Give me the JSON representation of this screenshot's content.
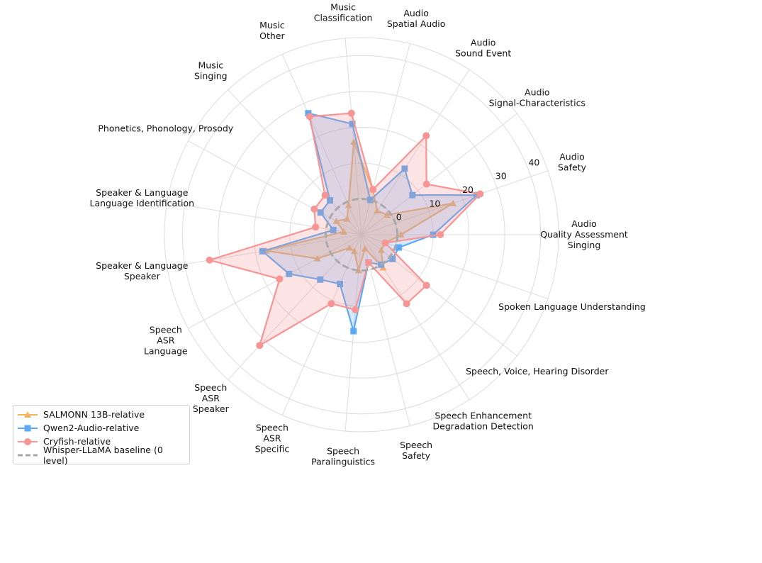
{
  "chart_data": {
    "type": "radar",
    "categories": [
      "Audio\nQuality Assessment\nSinging",
      "Audio\nSafety",
      "Audio\nSignal-Characteristics",
      "Audio\nSound Event",
      "Audio\nSpatial Audio",
      "Music\nClassification",
      "Music\nOther",
      "Music\nSinging",
      "Phonetics, Phonology, Prosody",
      "Speaker & Language\nLanguage Identification",
      "Speaker & Language\nSpeaker",
      "Speech\nASR\nLanguage",
      "Speech\nASR\nSpeaker",
      "Speech\nASR\nSpecific",
      "Speech\nParalinguistics",
      "Speech\nSafety",
      "Speech Enhancement\nDegradation Detection",
      "Speech, Voice, Hearing Disorder",
      "Spoken Language Understanding"
    ],
    "rlim": [
      -10,
      45
    ],
    "rticks": [
      0,
      10,
      20,
      30,
      40
    ],
    "rtick_labels": [
      "0",
      "10",
      "20",
      "30",
      "40"
    ],
    "grid": true,
    "legend_position": "lower-left",
    "baseline": {
      "name": "Whisper-LLaMA baseline (0 level)",
      "value": 0,
      "color": "#a9a9a9"
    },
    "series": [
      {
        "name": "SALMONN 13B-relative",
        "color": "#f5b261",
        "marker": "triangle",
        "values": [
          1,
          17,
          -1,
          -2,
          3,
          16,
          -1,
          -4,
          -2,
          -5,
          17,
          4,
          -5,
          -5,
          0,
          -6,
          1,
          -3,
          -3
        ]
      },
      {
        "name": "Qwen2-Audio-relative",
        "color": "#5aa9f2",
        "marker": "square",
        "values": [
          10,
          24,
          8,
          12,
          0,
          21,
          27,
          3,
          3,
          -2,
          18,
          13,
          7,
          5,
          17,
          -2,
          0,
          1,
          1
        ]
      },
      {
        "name": "Cryfish-relative",
        "color": "#f79595",
        "marker": "circle",
        "values": [
          12,
          25,
          13,
          23,
          3,
          24,
          26,
          5,
          5,
          3,
          33,
          16,
          32,
          11,
          11,
          -2,
          13,
          13,
          -3
        ]
      }
    ]
  }
}
